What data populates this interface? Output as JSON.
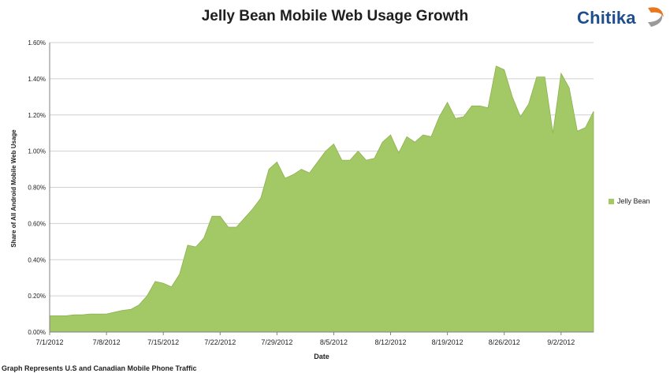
{
  "logo": {
    "text": "Chitika",
    "icon": "chitika-swirl-logo"
  },
  "footnote": "Graph Represents U.S and Canadian Mobile Phone Traffic",
  "colors": {
    "area": "#a3c966",
    "area_stroke": "#8db04e",
    "grid": "#d0d0d0",
    "axis": "#808080",
    "logo": "#1e4e8c"
  },
  "chart_data": {
    "type": "area",
    "title": "Jelly Bean Mobile Web Usage Growth",
    "xlabel": "Date",
    "ylabel": "Share of All Android Mobile Web Usage",
    "grid": true,
    "legend_position": "right",
    "ylim": [
      0,
      1.6
    ],
    "yticks": [
      "0.00%",
      "0.20%",
      "0.40%",
      "0.60%",
      "0.80%",
      "1.00%",
      "1.20%",
      "1.40%",
      "1.60%"
    ],
    "xticks": [
      "7/1/2012",
      "7/8/2012",
      "7/15/2012",
      "7/22/2012",
      "7/29/2012",
      "8/5/2012",
      "8/12/2012",
      "8/19/2012",
      "8/26/2012",
      "9/2/2012"
    ],
    "series": [
      {
        "name": "Jelly Bean",
        "x": [
          "7/1/2012",
          "7/2/2012",
          "7/3/2012",
          "7/4/2012",
          "7/5/2012",
          "7/6/2012",
          "7/7/2012",
          "7/8/2012",
          "7/9/2012",
          "7/10/2012",
          "7/11/2012",
          "7/12/2012",
          "7/13/2012",
          "7/14/2012",
          "7/15/2012",
          "7/16/2012",
          "7/17/2012",
          "7/18/2012",
          "7/19/2012",
          "7/20/2012",
          "7/21/2012",
          "7/22/2012",
          "7/23/2012",
          "7/24/2012",
          "7/25/2012",
          "7/26/2012",
          "7/27/2012",
          "7/28/2012",
          "7/29/2012",
          "7/30/2012",
          "7/31/2012",
          "8/1/2012",
          "8/2/2012",
          "8/3/2012",
          "8/4/2012",
          "8/5/2012",
          "8/6/2012",
          "8/7/2012",
          "8/8/2012",
          "8/9/2012",
          "8/10/2012",
          "8/11/2012",
          "8/12/2012",
          "8/13/2012",
          "8/14/2012",
          "8/15/2012",
          "8/16/2012",
          "8/17/2012",
          "8/18/2012",
          "8/19/2012",
          "8/20/2012",
          "8/21/2012",
          "8/22/2012",
          "8/23/2012",
          "8/24/2012",
          "8/25/2012",
          "8/26/2012",
          "8/27/2012",
          "8/28/2012",
          "8/29/2012",
          "8/30/2012",
          "8/31/2012",
          "9/1/2012",
          "9/2/2012",
          "9/3/2012",
          "9/4/2012",
          "9/5/2012",
          "9/6/2012"
        ],
        "values": [
          0.09,
          0.09,
          0.09,
          0.095,
          0.095,
          0.1,
          0.1,
          0.1,
          0.11,
          0.12,
          0.125,
          0.15,
          0.2,
          0.28,
          0.27,
          0.25,
          0.32,
          0.48,
          0.47,
          0.52,
          0.64,
          0.64,
          0.58,
          0.58,
          0.63,
          0.68,
          0.74,
          0.9,
          0.94,
          0.85,
          0.87,
          0.9,
          0.88,
          0.94,
          1.0,
          1.04,
          0.95,
          0.95,
          1.0,
          0.95,
          0.96,
          1.05,
          1.09,
          0.99,
          1.08,
          1.05,
          1.09,
          1.08,
          1.19,
          1.27,
          1.18,
          1.19,
          1.25,
          1.25,
          1.24,
          1.47,
          1.45,
          1.3,
          1.19,
          1.26,
          1.41,
          1.41,
          1.1,
          1.43,
          1.35,
          1.11,
          1.13,
          1.22
        ]
      }
    ]
  }
}
